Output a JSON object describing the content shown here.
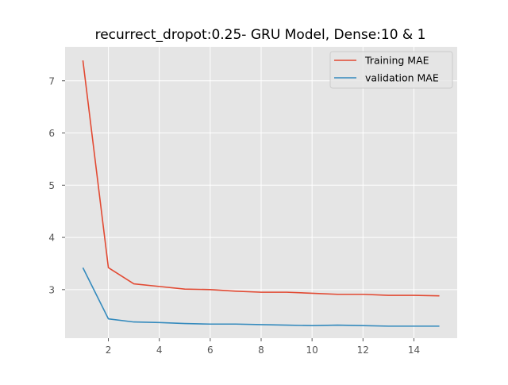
{
  "chart_data": {
    "type": "line",
    "title": "recurrect_dropot:0.25- GRU Model, Dense:10 & 1",
    "xlabel": "",
    "ylabel": "",
    "x": [
      1,
      2,
      3,
      4,
      5,
      6,
      7,
      8,
      9,
      10,
      11,
      12,
      13,
      14,
      15
    ],
    "series": [
      {
        "name": "Training MAE",
        "color": "#e24a33",
        "values": [
          7.39,
          3.42,
          3.11,
          3.06,
          3.01,
          3.0,
          2.97,
          2.95,
          2.95,
          2.93,
          2.91,
          2.91,
          2.89,
          2.89,
          2.88
        ]
      },
      {
        "name": "validation MAE",
        "color": "#348abd",
        "values": [
          3.42,
          2.44,
          2.38,
          2.37,
          2.35,
          2.34,
          2.34,
          2.33,
          2.32,
          2.31,
          2.32,
          2.31,
          2.3,
          2.3,
          2.3
        ]
      }
    ],
    "xlim": [
      0.3,
      15.7
    ],
    "ylim": [
      2.07,
      7.65
    ],
    "xticks": [
      2,
      4,
      6,
      8,
      10,
      12,
      14
    ],
    "yticks": [
      3,
      4,
      5,
      6,
      7
    ],
    "grid": true,
    "legend": "top-right",
    "colors": {
      "background": "#e5e5e5",
      "grid": "#ffffff"
    }
  }
}
